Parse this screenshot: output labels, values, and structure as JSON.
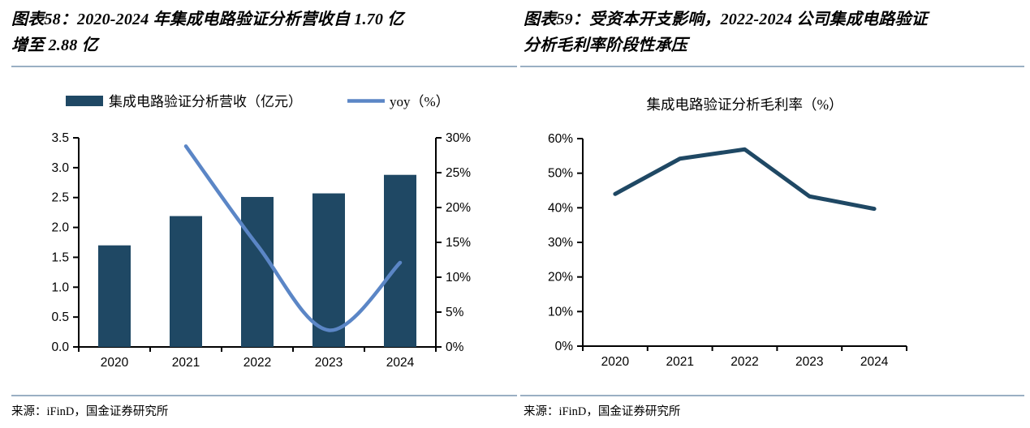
{
  "page": {
    "left_figure": {
      "title_lines": [
        "图表58：2020-2024 年集成电路验证分析营收自 1.70 亿",
        "增至 2.88 亿"
      ],
      "source": "来源：iFinD，国金证券研究所"
    },
    "right_figure": {
      "title_lines": [
        "图表59：受资本开支影响，2022-2024 公司集成电路验证",
        "分析毛利率阶段性承压"
      ],
      "source": "来源：iFinD，国金证券研究所"
    }
  },
  "colors": {
    "bar": "#1F4864",
    "yoy_line": "#5B86C6",
    "margin_line": "#1F4864",
    "divider_rule": "#9AAFC3",
    "axis": "#000000"
  },
  "chart_data": [
    {
      "type": "bar",
      "subtype": "bar+line-combo",
      "categories": [
        "2020",
        "2021",
        "2022",
        "2023",
        "2024"
      ],
      "series": [
        {
          "name": "集成电路验证分析营收（亿元）",
          "type": "bar",
          "axis": "left",
          "values": [
            1.7,
            2.19,
            2.51,
            2.57,
            2.88
          ]
        },
        {
          "name": "yoy（%）",
          "type": "line",
          "axis": "right",
          "values": [
            null,
            28.8,
            14.6,
            2.4,
            12.1
          ],
          "smooth": true
        }
      ],
      "legend": [
        {
          "label": "集成电路验证分析营收（亿元）",
          "swatch": "bar"
        },
        {
          "label": "yoy（%）",
          "swatch": "line"
        }
      ],
      "left_axis": {
        "min": 0,
        "max": 3.5,
        "step": 0.5,
        "tick_labels": [
          "0.0",
          "0.5",
          "1.0",
          "1.5",
          "2.0",
          "2.5",
          "3.0",
          "3.5"
        ]
      },
      "right_axis": {
        "min": 0,
        "max": 30,
        "step": 5,
        "tick_labels": [
          "0%",
          "5%",
          "10%",
          "15%",
          "20%",
          "25%",
          "30%"
        ]
      },
      "legend_position": "top",
      "grid": false
    },
    {
      "type": "line",
      "title": "集成电路验证分析毛利率（%）",
      "categories": [
        "2020",
        "2021",
        "2022",
        "2023",
        "2024"
      ],
      "values": [
        44,
        54.2,
        56.9,
        43.3,
        39.7
      ],
      "y_axis": {
        "min": 0,
        "max": 60,
        "step": 10,
        "tick_labels": [
          "0%",
          "10%",
          "20%",
          "30%",
          "40%",
          "50%",
          "60%"
        ]
      },
      "grid": false,
      "legend_position": "none"
    }
  ]
}
